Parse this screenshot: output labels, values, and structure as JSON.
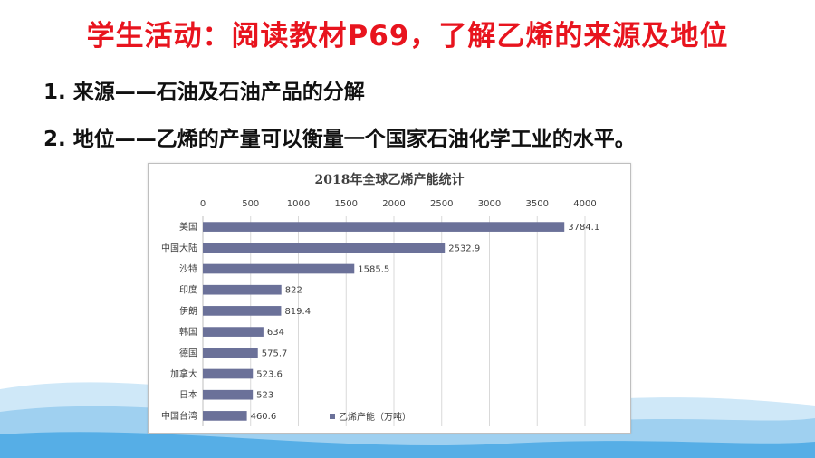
{
  "slide": {
    "title": "学生活动：阅读教材P69，了解乙烯的来源及地位",
    "points": [
      "1. 来源——石油及石油产品的分解",
      "2. 地位——乙烯的产量可以衡量一个国家石油化学工业的水平。"
    ]
  },
  "colors": {
    "title": "#e8141e",
    "bar": "#6b7199",
    "wave_light": "#cfe8f8",
    "wave_mid": "#9fd0f0",
    "wave_dark": "#56aee6"
  },
  "chart_data": {
    "type": "bar",
    "orientation": "horizontal",
    "title": "2018年全球乙烯产能统计",
    "categories": [
      "美国",
      "中国大陆",
      "沙特",
      "印度",
      "伊朗",
      "韩国",
      "德国",
      "加拿大",
      "日本",
      "中国台湾"
    ],
    "series": [
      {
        "name": "乙烯产能（万吨）",
        "values": [
          3784.1,
          2532.9,
          1585.5,
          822,
          819.4,
          634,
          575.7,
          523.6,
          523,
          460.6
        ],
        "labels": [
          "3784.1",
          "2532.9",
          "1585.5",
          "822",
          "819.4",
          "634",
          "575.7",
          "523.6",
          "523",
          "460.6"
        ]
      }
    ],
    "xlim": [
      0,
      4000
    ],
    "ticks": [
      "0",
      "500",
      "1000",
      "1500",
      "2000",
      "2500",
      "3000",
      "3500",
      "4000"
    ],
    "axis_position": "top",
    "grid": true,
    "legend": "bottom-right"
  }
}
